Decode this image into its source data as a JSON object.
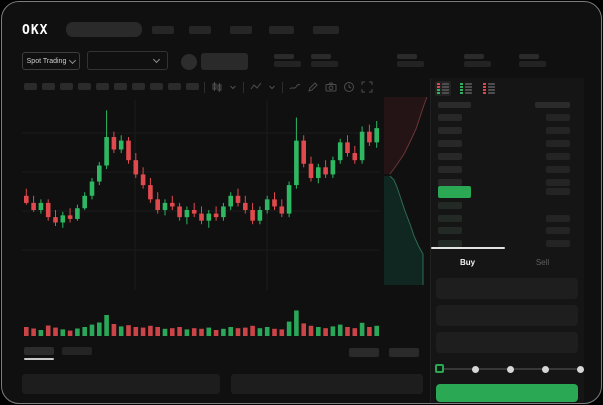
{
  "app": {
    "logo_text": "OKX"
  },
  "ticker_bar": {
    "market_label": "Spot Trading"
  },
  "trade_panel": {
    "buy_label": "Buy",
    "sell_label": "Sell",
    "field_count": 3,
    "slider_stop_count": 5,
    "slider_selected_index": 0
  },
  "orderbook": {
    "view_modes": [
      "book-combined",
      "book-bids-only",
      "book-asks-only"
    ],
    "ask_row_count": 6,
    "bid_row_count": 4,
    "has_price_highlight": true
  },
  "skeleton": {
    "nav_item_count": 5,
    "ticker_stat_count": 5,
    "timeframe_count": 10,
    "bottom_tab_count": 2,
    "bottom_button_count": 2,
    "bottom_panel_count": 2
  },
  "colors": {
    "up_green": "#2eb862",
    "down_red": "#e04a4e",
    "accent_green": "#2aa853",
    "depth_ask_fill": "#241415",
    "depth_ask_line": "#6b3538",
    "depth_bid_fill": "#102620",
    "depth_bid_line": "#2d6b52",
    "tab_indicator": "#e3e3e3"
  },
  "icons": [
    "search-icon",
    "chevron-down-icon",
    "candles-icon",
    "indicators-icon",
    "trendline-icon",
    "pencil-icon",
    "camera-icon",
    "clock-icon",
    "fullscreen-icon",
    "book-combined-icon",
    "book-bids-icon",
    "book-asks-icon"
  ],
  "chart_data": {
    "type": "candlestick",
    "title": "",
    "xlabel": "",
    "ylabel": "",
    "ylim": [
      0,
      100
    ],
    "grid": "faint",
    "candles": [
      [
        49,
        53,
        44,
        45
      ],
      [
        45,
        49,
        40,
        41
      ],
      [
        41,
        47,
        39,
        45
      ],
      [
        45,
        47,
        35,
        37
      ],
      [
        37,
        41,
        32,
        34
      ],
      [
        34,
        40,
        31,
        38
      ],
      [
        38,
        42,
        34,
        36
      ],
      [
        36,
        44,
        35,
        42
      ],
      [
        42,
        51,
        41,
        49
      ],
      [
        49,
        59,
        47,
        57
      ],
      [
        57,
        68,
        55,
        66
      ],
      [
        66,
        97,
        64,
        82
      ],
      [
        82,
        85,
        73,
        75
      ],
      [
        75,
        83,
        73,
        80
      ],
      [
        80,
        82,
        67,
        69
      ],
      [
        69,
        73,
        59,
        61
      ],
      [
        61,
        65,
        53,
        55
      ],
      [
        55,
        59,
        45,
        47
      ],
      [
        47,
        51,
        39,
        41
      ],
      [
        41,
        47,
        38,
        45
      ],
      [
        45,
        49,
        41,
        43
      ],
      [
        43,
        45,
        35,
        37
      ],
      [
        37,
        43,
        33,
        41
      ],
      [
        41,
        45,
        37,
        39
      ],
      [
        39,
        43,
        33,
        35
      ],
      [
        35,
        41,
        31,
        39
      ],
      [
        39,
        43,
        35,
        37
      ],
      [
        37,
        45,
        35,
        43
      ],
      [
        43,
        51,
        41,
        49
      ],
      [
        49,
        53,
        43,
        45
      ],
      [
        45,
        49,
        39,
        41
      ],
      [
        41,
        45,
        33,
        35
      ],
      [
        35,
        43,
        33,
        41
      ],
      [
        41,
        49,
        39,
        47
      ],
      [
        47,
        51,
        41,
        43
      ],
      [
        43,
        47,
        37,
        39
      ],
      [
        39,
        57,
        37,
        55
      ],
      [
        55,
        93,
        53,
        80
      ],
      [
        80,
        83,
        65,
        67
      ],
      [
        67,
        71,
        57,
        59
      ],
      [
        59,
        67,
        56,
        65
      ],
      [
        65,
        69,
        59,
        61
      ],
      [
        61,
        71,
        59,
        69
      ],
      [
        69,
        81,
        67,
        79
      ],
      [
        79,
        83,
        71,
        73
      ],
      [
        73,
        77,
        67,
        69
      ],
      [
        69,
        88,
        67,
        85
      ],
      [
        85,
        89,
        77,
        79
      ],
      [
        79,
        91,
        76,
        87
      ]
    ],
    "volume": [
      30,
      25,
      20,
      35,
      28,
      22,
      18,
      25,
      30,
      38,
      45,
      70,
      40,
      32,
      36,
      30,
      28,
      34,
      30,
      24,
      26,
      30,
      22,
      26,
      24,
      28,
      20,
      24,
      30,
      26,
      28,
      34,
      26,
      30,
      24,
      22,
      48,
      85,
      42,
      34,
      30,
      26,
      32,
      38,
      30,
      26,
      44,
      30,
      34
    ],
    "depth": {
      "ask_curve": [
        [
          45,
          0
        ],
        [
          42,
          8
        ],
        [
          38,
          20
        ],
        [
          34,
          32
        ],
        [
          28,
          45
        ],
        [
          22,
          57
        ],
        [
          16,
          66
        ],
        [
          11,
          73
        ],
        [
          8,
          77
        ]
      ],
      "bid_curve": [
        [
          8,
          79
        ],
        [
          12,
          83
        ],
        [
          15,
          90
        ],
        [
          19,
          102
        ],
        [
          23,
          114
        ],
        [
          28,
          127
        ],
        [
          32,
          139
        ],
        [
          37,
          150
        ],
        [
          41,
          157
        ],
        [
          41,
          188
        ]
      ]
    }
  }
}
